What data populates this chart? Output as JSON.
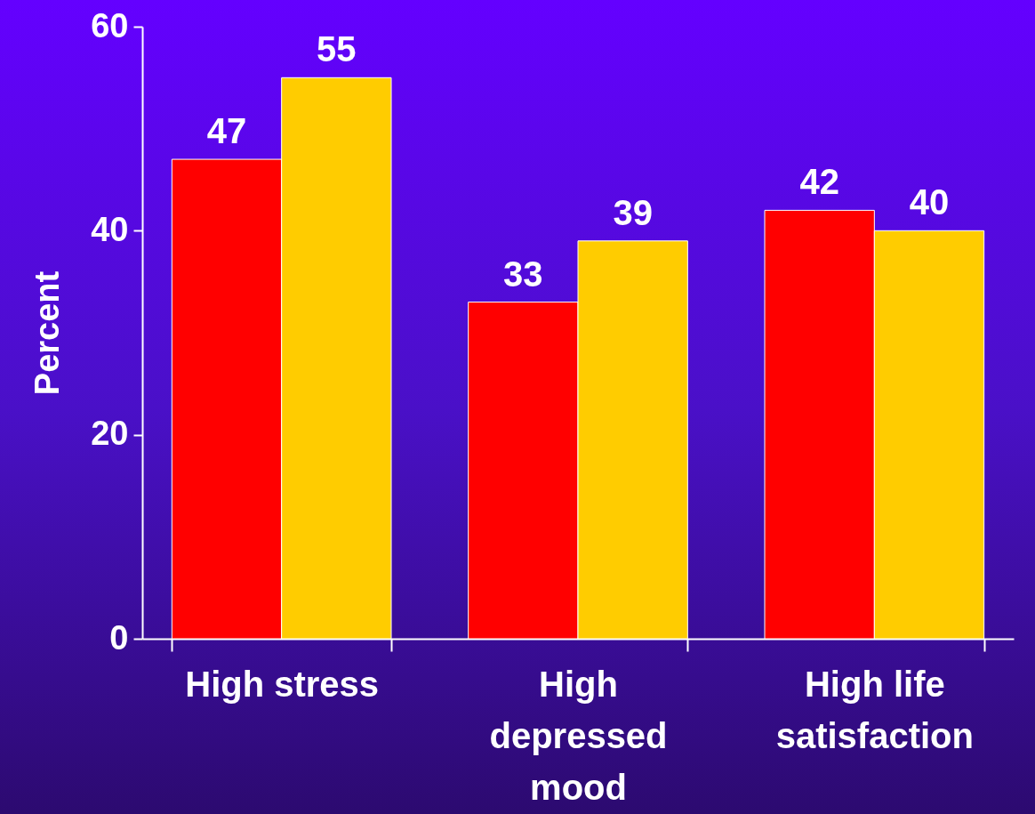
{
  "chart_data": {
    "type": "bar",
    "ylabel": "Percent",
    "categories": [
      "High stress",
      "High depressed mood",
      "High life satisfaction"
    ],
    "series": [
      {
        "color": "#ff0000",
        "values": [
          47,
          33,
          42
        ]
      },
      {
        "color": "#ffcc00",
        "values": [
          55,
          39,
          40
        ]
      }
    ],
    "ylim": [
      0,
      60
    ],
    "yticks": [
      0,
      20,
      40,
      60
    ],
    "data_labels": true
  }
}
